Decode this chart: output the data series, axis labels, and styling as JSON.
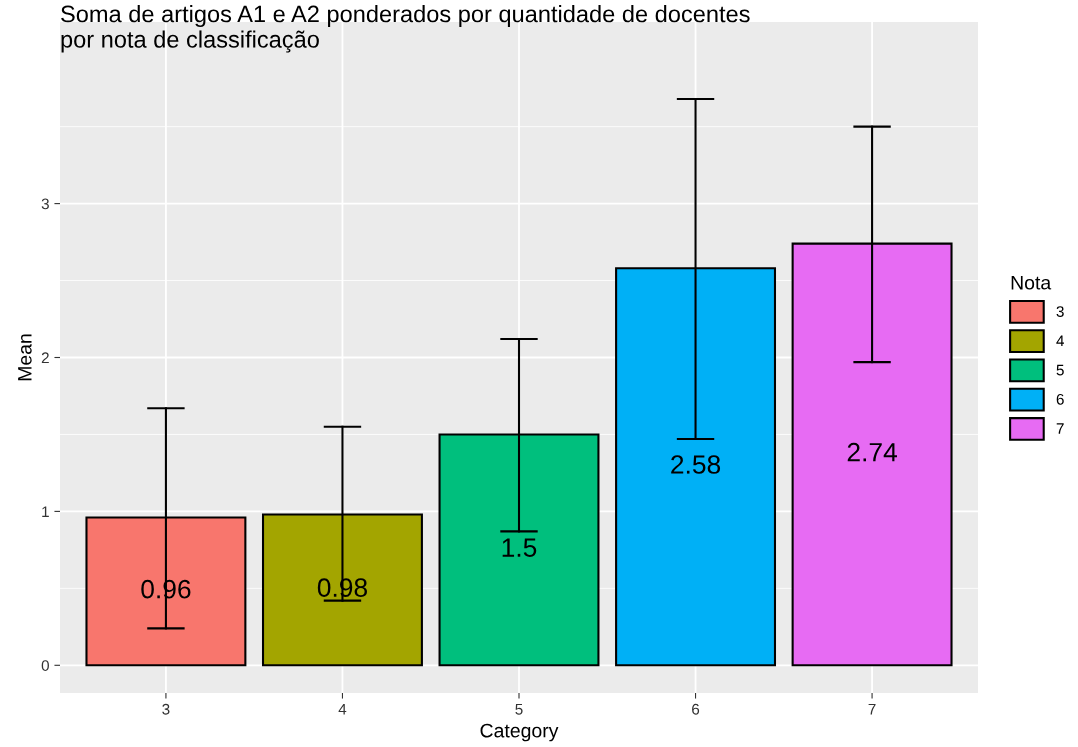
{
  "chart_data": {
    "type": "bar",
    "title": "Soma de artigos A1 e A2 ponderados por quantidade de docentes\npor nota de classificação",
    "xlabel": "Category",
    "ylabel": "Mean",
    "legend_title": "Nota",
    "categories": [
      "3",
      "4",
      "5",
      "6",
      "7"
    ],
    "series": [
      {
        "name": "3",
        "color": "#f8766d",
        "values": [
          0.96,
          null,
          null,
          null,
          null
        ],
        "errors": [
          [
            0.24,
            1.67
          ],
          null,
          null,
          null,
          null
        ]
      },
      {
        "name": "4",
        "color": "#a3a500",
        "values": [
          null,
          0.98,
          null,
          null,
          null
        ],
        "errors": [
          null,
          [
            0.42,
            1.55
          ],
          null,
          null,
          null
        ]
      },
      {
        "name": "5",
        "color": "#00bf7d",
        "values": [
          null,
          null,
          1.5,
          null,
          null
        ],
        "errors": [
          null,
          null,
          [
            0.87,
            2.12
          ],
          null,
          null
        ]
      },
      {
        "name": "6",
        "color": "#00b0f6",
        "values": [
          null,
          null,
          null,
          2.58,
          null
        ],
        "errors": [
          null,
          null,
          null,
          [
            1.47,
            3.68
          ],
          null
        ]
      },
      {
        "name": "7",
        "color": "#e76bf3",
        "values": [
          null,
          null,
          null,
          null,
          2.74
        ],
        "errors": [
          null,
          null,
          null,
          null,
          [
            1.97,
            3.5
          ]
        ]
      }
    ],
    "ylim": [
      -0.18,
      4.18
    ],
    "yticks": [
      0,
      1,
      2,
      3
    ],
    "data_labels": true,
    "grid": true,
    "legend": "right"
  }
}
